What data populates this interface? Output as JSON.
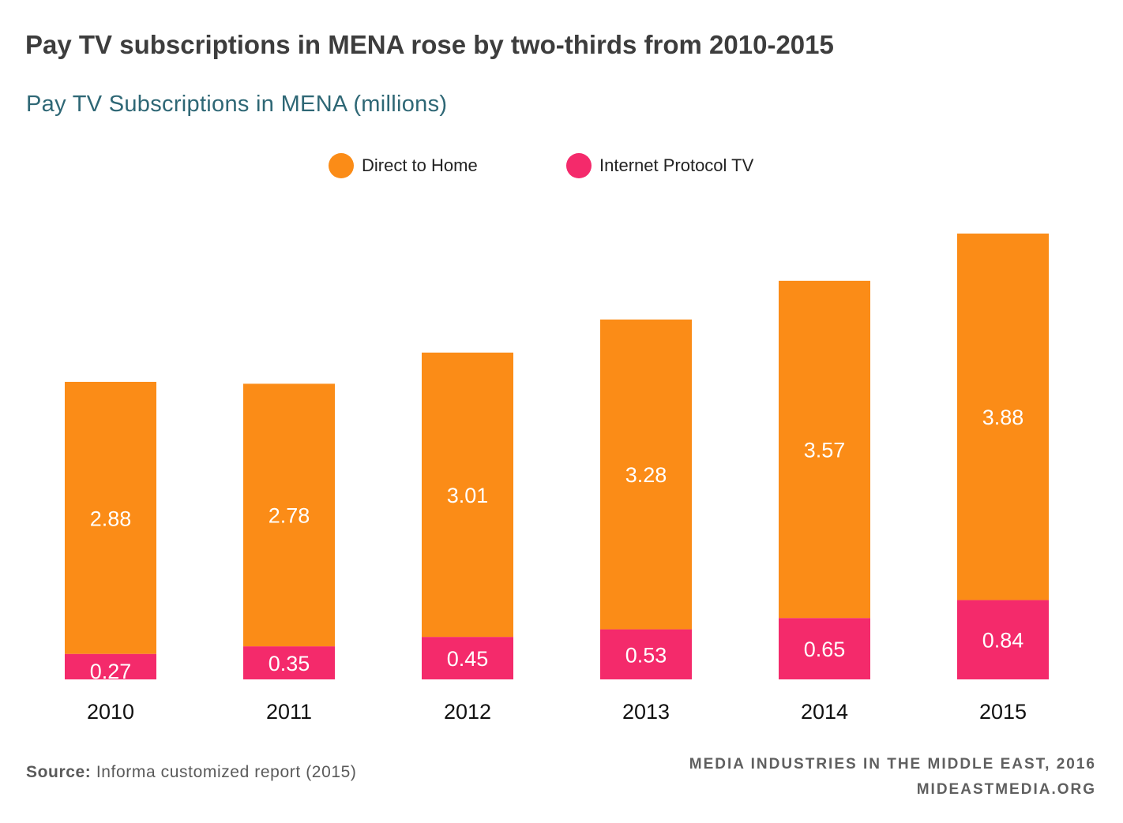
{
  "title": "Pay TV subscriptions in MENA rose by two-thirds from 2010-2015",
  "subtitle": "Pay TV Subscriptions in MENA (millions)",
  "legend": [
    {
      "label": "Direct to Home",
      "color": "#fb8c17"
    },
    {
      "label": "Internet Protocol TV",
      "color": "#f42a6b"
    }
  ],
  "chart_data": {
    "type": "bar",
    "stacked": true,
    "categories": [
      "2010",
      "2011",
      "2012",
      "2013",
      "2014",
      "2015"
    ],
    "series": [
      {
        "name": "Internet Protocol TV",
        "color": "#f42a6b",
        "values": [
          0.27,
          0.35,
          0.45,
          0.53,
          0.65,
          0.84
        ],
        "labels": [
          "0.27",
          "0.35",
          "0.45",
          "0.53",
          "0.65",
          "0.84"
        ]
      },
      {
        "name": "Direct to Home",
        "color": "#fb8c17",
        "values": [
          2.88,
          2.78,
          3.01,
          3.28,
          3.57,
          3.88
        ],
        "labels": [
          "2.88",
          "2.78",
          "3.01",
          "3.28",
          "3.57",
          "3.88"
        ]
      }
    ],
    "ylim": [
      0,
      4.72
    ],
    "grid": false,
    "legend_position": "top-center"
  },
  "source": {
    "label": "Source:",
    "text": "Informa customized report (2015)"
  },
  "credit": {
    "line1": "MEDIA INDUSTRIES IN THE MIDDLE EAST, 2016",
    "line2": "MIDEASTMEDIA.ORG"
  }
}
